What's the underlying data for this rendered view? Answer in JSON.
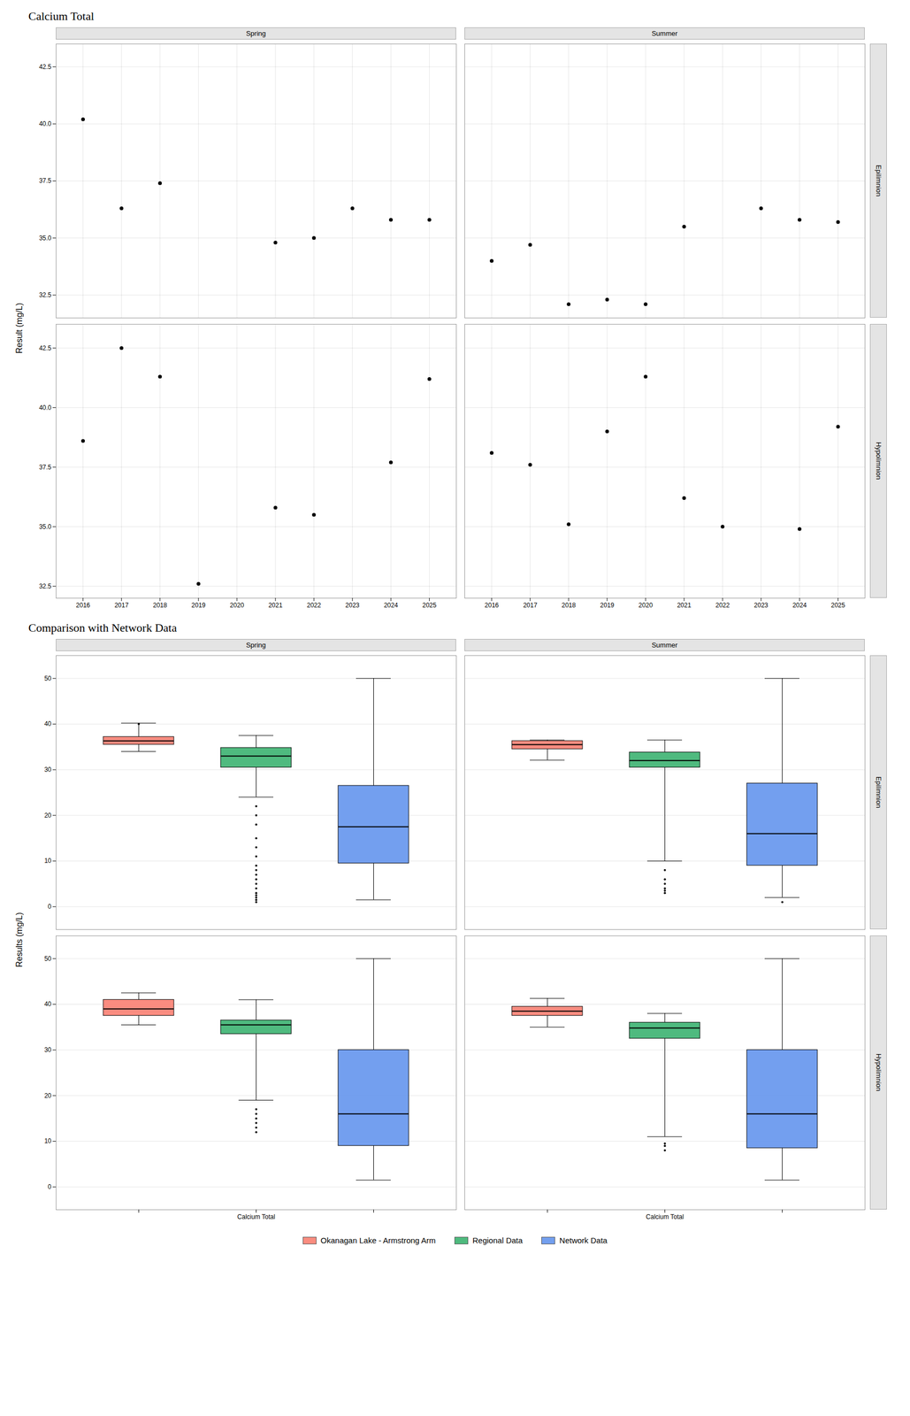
{
  "chart_data": [
    {
      "type": "scatter",
      "title": "Calcium Total",
      "ylabel": "Result (mg/L)",
      "columns": [
        "Spring",
        "Summer"
      ],
      "rows": [
        "Epilimnion",
        "Hypolimnion"
      ],
      "color": "black",
      "grid": true,
      "xlim": [
        2015.3,
        2025.7
      ],
      "xticks": [
        2016,
        2017,
        2018,
        2019,
        2020,
        2021,
        2022,
        2023,
        2024,
        2025
      ],
      "panels": [
        {
          "column": "Spring",
          "row": "Epilimnion",
          "x": [
            2016,
            2017,
            2018,
            2021,
            2022,
            2023,
            2024,
            2025
          ],
          "values": [
            40.2,
            36.3,
            37.4,
            34.8,
            35.0,
            36.3,
            35.8,
            35.8
          ],
          "ylim": [
            31.5,
            43.5
          ],
          "yticks": [
            32.5,
            {
              "value": 35.0,
              "label": "35.0"
            },
            37.5,
            {
              "value": 40.0,
              "label": "40.0"
            },
            42.5
          ]
        },
        {
          "column": "Summer",
          "row": "Epilimnion",
          "x": [
            2016,
            2017,
            2018,
            2019,
            2020,
            2021,
            2023,
            2024,
            2025
          ],
          "values": [
            34.0,
            34.7,
            32.1,
            32.3,
            32.1,
            35.5,
            36.3,
            35.8,
            35.7
          ],
          "ylim": [
            31.5,
            43.5
          ],
          "yticks": [
            32.5,
            {
              "value": 35.0,
              "label": "35.0"
            },
            37.5,
            {
              "value": 40.0,
              "label": "40.0"
            },
            42.5
          ]
        },
        {
          "column": "Spring",
          "row": "Hypolimnion",
          "x": [
            2016,
            2017,
            2018,
            2019,
            2021,
            2022,
            2024,
            2025
          ],
          "values": [
            38.6,
            42.5,
            41.3,
            32.6,
            35.8,
            35.5,
            37.7,
            41.2
          ],
          "ylim": [
            32.0,
            43.5
          ],
          "yticks": [
            32.5,
            {
              "value": 35.0,
              "label": "35.0"
            },
            37.5,
            {
              "value": 40.0,
              "label": "40.0"
            },
            42.5
          ]
        },
        {
          "column": "Summer",
          "row": "Hypolimnion",
          "x": [
            2016,
            2017,
            2018,
            2019,
            2020,
            2021,
            2022,
            2024,
            2025
          ],
          "values": [
            38.1,
            37.6,
            35.1,
            39.0,
            41.3,
            36.2,
            35.0,
            34.9,
            39.2
          ],
          "ylim": [
            32.0,
            43.5
          ],
          "yticks": [
            32.5,
            {
              "value": 35.0,
              "label": "35.0"
            },
            37.5,
            {
              "value": 40.0,
              "label": "40.0"
            },
            42.5
          ]
        }
      ]
    },
    {
      "type": "box",
      "title": "Comparison with Network Data",
      "ylabel": "Results (mg/L)",
      "columns": [
        "Spring",
        "Summer"
      ],
      "rows": [
        "Epilimnion",
        "Hypolimnion"
      ],
      "categories": [
        null,
        "Calcium Total",
        null
      ],
      "grid": "y",
      "legend": "bottom",
      "ylim": [
        -5,
        55
      ],
      "yticks": [
        0,
        10,
        20,
        30,
        40,
        50
      ],
      "series": [
        {
          "name": "Okanagan Lake - Armstrong Arm",
          "color": "#FA8072"
        },
        {
          "name": "Regional Data",
          "color": "#3CB371"
        },
        {
          "name": "Network Data",
          "color": "#6495ED"
        }
      ],
      "panels": [
        {
          "column": "Spring",
          "row": "Epilimnion",
          "boxes": [
            {
              "median": 36.3,
              "q1": 35.5,
              "q3": 37.2,
              "whislo": 34.0,
              "whishi": 40.2,
              "fliers": [
                40.0
              ]
            },
            {
              "median": 33.0,
              "q1": 30.5,
              "q3": 34.8,
              "whislo": 24.0,
              "whishi": 37.5,
              "fliers": [
                22.0,
                20.0,
                18.0,
                15.0,
                13.0,
                11.0,
                9.0,
                8.0,
                7.0,
                6.0,
                5.0,
                4.0,
                3.0,
                2.5,
                2.0,
                1.5,
                1.0
              ]
            },
            {
              "median": 17.5,
              "q1": 9.5,
              "q3": 26.5,
              "whislo": 1.5,
              "whishi": 50.0,
              "fliers": []
            }
          ]
        },
        {
          "column": "Summer",
          "row": "Epilimnion",
          "boxes": [
            {
              "median": 35.5,
              "q1": 34.5,
              "q3": 36.3,
              "whislo": 32.1,
              "whishi": 36.5,
              "fliers": []
            },
            {
              "median": 32.0,
              "q1": 30.5,
              "q3": 33.8,
              "whislo": 10.0,
              "whishi": 36.5,
              "fliers": [
                8.0,
                6.0,
                5.0,
                4.0,
                3.5,
                3.0
              ]
            },
            {
              "median": 16.0,
              "q1": 9.0,
              "q3": 27.0,
              "whislo": 2.0,
              "whishi": 50.0,
              "fliers": [
                1.0
              ]
            }
          ]
        },
        {
          "column": "Spring",
          "row": "Hypolimnion",
          "boxes": [
            {
              "median": 39.0,
              "q1": 37.5,
              "q3": 41.0,
              "whislo": 35.5,
              "whishi": 42.5,
              "fliers": []
            },
            {
              "median": 35.5,
              "q1": 33.5,
              "q3": 36.5,
              "whislo": 19.0,
              "whishi": 41.0,
              "fliers": [
                17.0,
                16.0,
                15.0,
                14.0,
                13.0,
                12.0
              ]
            },
            {
              "median": 16.0,
              "q1": 9.0,
              "q3": 30.0,
              "whislo": 1.5,
              "whishi": 50.0,
              "fliers": []
            }
          ]
        },
        {
          "column": "Summer",
          "row": "Hypolimnion",
          "boxes": [
            {
              "median": 38.5,
              "q1": 37.5,
              "q3": 39.5,
              "whislo": 35.0,
              "whishi": 41.3,
              "fliers": []
            },
            {
              "median": 34.8,
              "q1": 32.5,
              "q3": 36.0,
              "whislo": 11.0,
              "whishi": 38.0,
              "fliers": [
                9.5,
                9.0,
                8.0
              ]
            },
            {
              "median": 16.0,
              "q1": 8.5,
              "q3": 30.0,
              "whislo": 1.5,
              "whishi": 50.0,
              "fliers": []
            }
          ]
        }
      ]
    }
  ]
}
